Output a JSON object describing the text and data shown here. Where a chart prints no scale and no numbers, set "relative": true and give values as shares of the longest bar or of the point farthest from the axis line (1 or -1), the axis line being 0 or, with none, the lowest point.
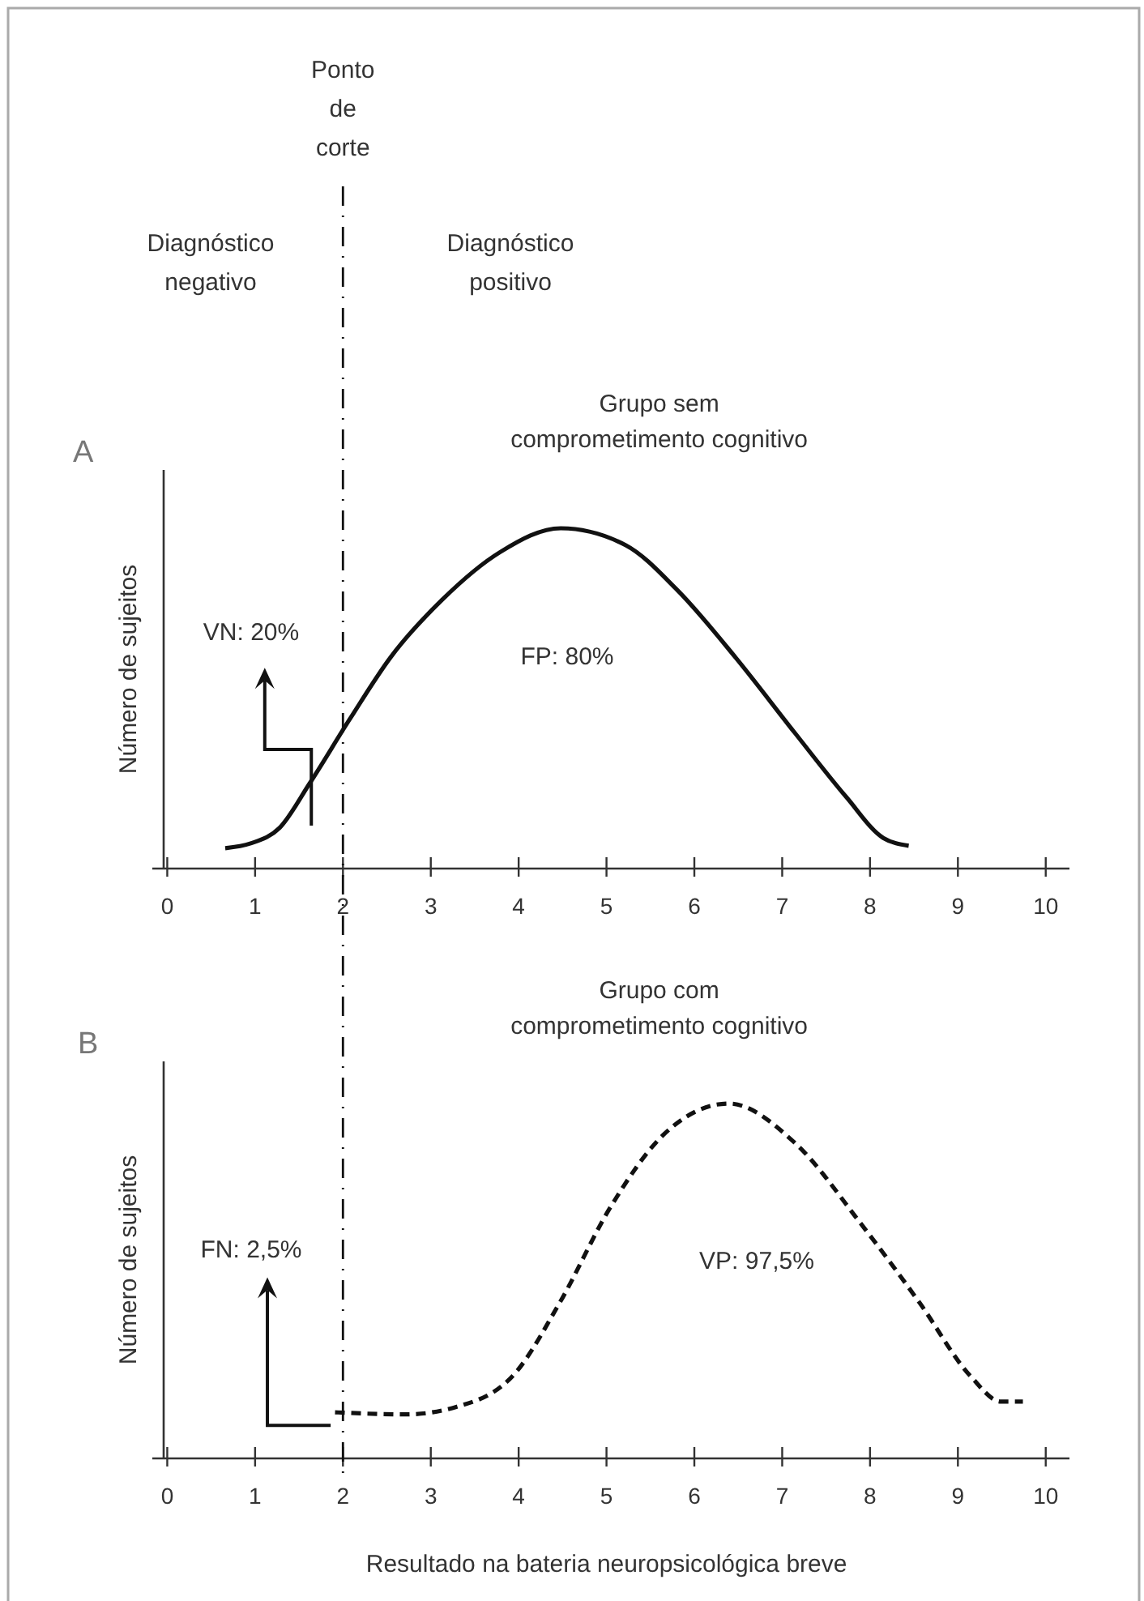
{
  "chart_data": [
    {
      "type": "line",
      "title": "Grupo sem comprometimento cognitivo",
      "ylabel": "Número de sujeitos",
      "relative": true,
      "line_style": "solid",
      "marker": "none",
      "grid": false,
      "x": [
        0.66,
        0.95,
        1.28,
        1.62,
        2.08,
        2.54,
        3.13,
        3.79,
        4.48,
        5.22,
        5.8,
        6.47,
        7.14,
        7.73,
        8.15,
        8.44
      ],
      "series": [
        {
          "color": "#111111",
          "values": [
            0.06,
            0.074,
            0.12,
            0.25,
            0.44,
            0.62,
            0.79,
            0.93,
            1,
            0.95,
            0.82,
            0.62,
            0.4,
            0.21,
            0.09,
            0.067
          ]
        }
      ],
      "xlim": [
        -0.17,
        10.27
      ],
      "xticks": [
        0,
        1,
        2,
        3,
        4,
        5,
        6,
        7,
        8,
        9,
        10
      ],
      "ref_lines": [
        {
          "axis": "x",
          "value": 2,
          "label": "Ponto de corte",
          "line_style": "dashdot"
        }
      ],
      "annotations": [
        "A",
        "Diagnóstico negativo",
        "Diagnóstico positivo",
        "VN: 20%",
        "FP: 80%"
      ]
    },
    {
      "type": "line",
      "title": "Grupo com comprometimento cognitivo",
      "ylabel": "Número de sujeitos",
      "xlabel": "Resultado na bateria neuropsicológica breve",
      "relative": true,
      "line_style": "dashed",
      "marker": "none",
      "grid": false,
      "x": [
        1.91,
        2.71,
        3.29,
        3.96,
        4.47,
        5.05,
        5.64,
        6.39,
        7.14,
        7.9,
        8.56,
        9.15,
        9.49,
        9.74
      ],
      "series": [
        {
          "color": "#111111",
          "values": [
            0.13,
            0.124,
            0.145,
            0.24,
            0.44,
            0.71,
            0.91,
            1,
            0.89,
            0.66,
            0.44,
            0.23,
            0.16,
            0.16
          ]
        }
      ],
      "xlim": [
        -0.17,
        10.27
      ],
      "xticks": [
        0,
        1,
        2,
        3,
        4,
        5,
        6,
        7,
        8,
        9,
        10
      ],
      "ref_lines": [
        {
          "axis": "x",
          "value": 2,
          "line_style": "dashdot"
        }
      ],
      "annotations": [
        "B",
        "FN: 2,5%",
        "VP: 97,5%"
      ]
    }
  ]
}
